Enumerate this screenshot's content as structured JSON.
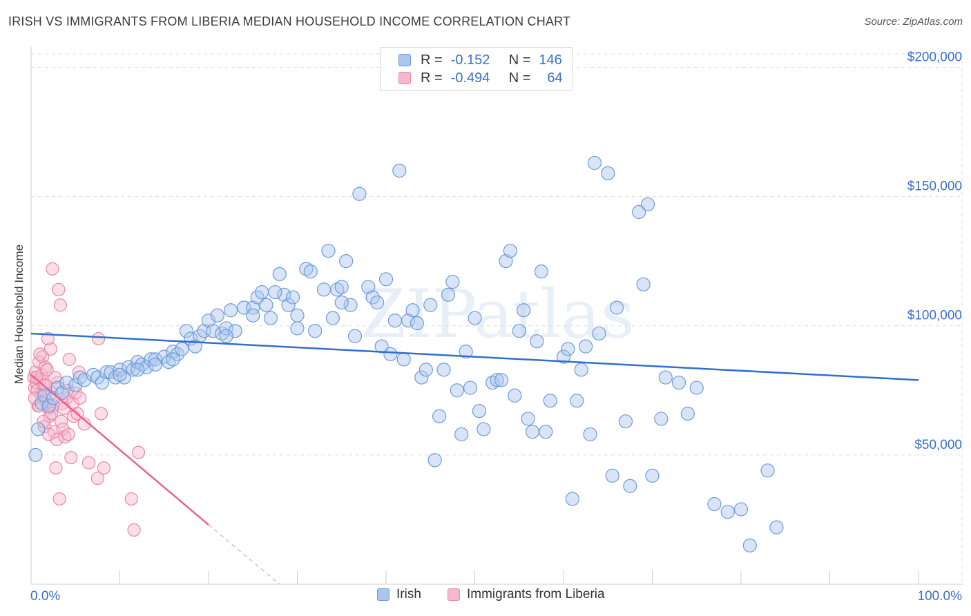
{
  "header": {
    "title": "IRISH VS IMMIGRANTS FROM LIBERIA MEDIAN HOUSEHOLD INCOME CORRELATION CHART",
    "source": "Source: ZipAtlas.com"
  },
  "legend": {
    "series": [
      {
        "r_label": "R =",
        "r_value": "-0.152",
        "n_label": "N =",
        "n_value": "146"
      },
      {
        "r_label": "R =",
        "r_value": "-0.494",
        "n_label": "N =",
        "n_value": "64"
      }
    ]
  },
  "bottom_legend": [
    "Irish",
    "Immigrants from Liberia"
  ],
  "watermark": "ZIPatlas",
  "colors": {
    "irish_fill": "#aac6ee",
    "irish_stroke": "#6d9ad8",
    "irish_line": "#2f6fcd",
    "liberia_fill": "#f5b8cb",
    "liberia_stroke": "#ea85a6",
    "liberia_line": "#e8628f",
    "axis_label": "#3a70c8",
    "grid": "#dddddd"
  },
  "chart_data": {
    "type": "scatter",
    "title": "IRISH VS IMMIGRANTS FROM LIBERIA MEDIAN HOUSEHOLD INCOME CORRELATION CHART",
    "xlabel": "",
    "ylabel": "Median Household Income",
    "xlim": [
      0,
      100
    ],
    "ylim": [
      0,
      210000
    ],
    "x_tick_labels": [
      {
        "value": 0,
        "label": "0.0%"
      },
      {
        "value": 100,
        "label": "100.0%"
      }
    ],
    "y_tick_labels": [
      {
        "value": 50000,
        "label": "$50,000"
      },
      {
        "value": 100000,
        "label": "$100,000"
      },
      {
        "value": 150000,
        "label": "$150,000"
      },
      {
        "value": 200000,
        "label": "$200,000"
      }
    ],
    "grid": true,
    "series": [
      {
        "name": "Irish",
        "r": -0.152,
        "n": 146,
        "trend": {
          "x0": 0,
          "y0": 97000,
          "x1": 100,
          "y1": 79000
        },
        "points": [
          [
            0.5,
            50000
          ],
          [
            0.8,
            60000
          ],
          [
            1.2,
            70000
          ],
          [
            1.5,
            73000
          ],
          [
            2,
            69000
          ],
          [
            2.5,
            72000
          ],
          [
            3,
            76000
          ],
          [
            3.5,
            74000
          ],
          [
            4,
            78000
          ],
          [
            5,
            77000
          ],
          [
            5.5,
            80000
          ],
          [
            6,
            79000
          ],
          [
            7,
            81000
          ],
          [
            7.5,
            80000
          ],
          [
            8,
            78000
          ],
          [
            8.5,
            82000
          ],
          [
            9,
            82000
          ],
          [
            9.5,
            80000
          ],
          [
            10,
            83000
          ],
          [
            10.5,
            80000
          ],
          [
            11,
            84000
          ],
          [
            11.5,
            83000
          ],
          [
            12,
            86000
          ],
          [
            12.5,
            85000
          ],
          [
            13,
            84000
          ],
          [
            13.5,
            87000
          ],
          [
            14,
            87000
          ],
          [
            15,
            88000
          ],
          [
            15.5,
            86000
          ],
          [
            16,
            90000
          ],
          [
            16.5,
            89000
          ],
          [
            17,
            91000
          ],
          [
            17.5,
            98000
          ],
          [
            18,
            95000
          ],
          [
            19,
            96000
          ],
          [
            19.5,
            98000
          ],
          [
            20,
            102000
          ],
          [
            20.5,
            98000
          ],
          [
            21,
            104000
          ],
          [
            21.5,
            97000
          ],
          [
            22,
            99000
          ],
          [
            22.5,
            106000
          ],
          [
            23,
            98000
          ],
          [
            24,
            107000
          ],
          [
            25,
            107000
          ],
          [
            25.5,
            111000
          ],
          [
            26,
            113000
          ],
          [
            26.5,
            108000
          ],
          [
            27,
            103000
          ],
          [
            28,
            120000
          ],
          [
            28.5,
            112000
          ],
          [
            29,
            108000
          ],
          [
            29.5,
            111000
          ],
          [
            30,
            104000
          ],
          [
            31,
            122000
          ],
          [
            31.5,
            121000
          ],
          [
            32,
            98000
          ],
          [
            33,
            114000
          ],
          [
            33.5,
            129000
          ],
          [
            34,
            103000
          ],
          [
            34.5,
            114000
          ],
          [
            35,
            115000
          ],
          [
            35.5,
            125000
          ],
          [
            36,
            108000
          ],
          [
            36.5,
            96000
          ],
          [
            37,
            151000
          ],
          [
            38,
            115000
          ],
          [
            38.5,
            111000
          ],
          [
            39,
            109000
          ],
          [
            39.5,
            92000
          ],
          [
            40,
            118000
          ],
          [
            40.5,
            89000
          ],
          [
            41,
            102000
          ],
          [
            41.5,
            160000
          ],
          [
            42,
            87000
          ],
          [
            42.5,
            102000
          ],
          [
            43,
            106000
          ],
          [
            43.5,
            101000
          ],
          [
            44,
            80000
          ],
          [
            44.5,
            83000
          ],
          [
            45,
            108000
          ],
          [
            45.5,
            48000
          ],
          [
            46,
            65000
          ],
          [
            46.5,
            83000
          ],
          [
            47,
            112000
          ],
          [
            47.5,
            117000
          ],
          [
            48,
            75000
          ],
          [
            48.5,
            58000
          ],
          [
            49,
            90000
          ],
          [
            49.5,
            76000
          ],
          [
            50,
            103000
          ],
          [
            50.5,
            67000
          ],
          [
            51,
            60000
          ],
          [
            52,
            78000
          ],
          [
            52.5,
            79000
          ],
          [
            53,
            79000
          ],
          [
            53.5,
            125000
          ],
          [
            54,
            129000
          ],
          [
            54.5,
            73000
          ],
          [
            55,
            98000
          ],
          [
            55.5,
            106000
          ],
          [
            56,
            64000
          ],
          [
            56.5,
            59000
          ],
          [
            57,
            94000
          ],
          [
            57.5,
            121000
          ],
          [
            58,
            59000
          ],
          [
            58.5,
            71000
          ],
          [
            60,
            88000
          ],
          [
            60.5,
            91000
          ],
          [
            61,
            33000
          ],
          [
            61.5,
            71000
          ],
          [
            62,
            83000
          ],
          [
            62.5,
            92000
          ],
          [
            63,
            58000
          ],
          [
            63.5,
            163000
          ],
          [
            64,
            97000
          ],
          [
            65,
            159000
          ],
          [
            65.5,
            42000
          ],
          [
            66,
            107000
          ],
          [
            67,
            63000
          ],
          [
            67.5,
            38000
          ],
          [
            68.5,
            144000
          ],
          [
            69,
            116000
          ],
          [
            69.5,
            147000
          ],
          [
            70,
            42000
          ],
          [
            71,
            64000
          ],
          [
            71.5,
            80000
          ],
          [
            73,
            78000
          ],
          [
            74,
            66000
          ],
          [
            75,
            76000
          ],
          [
            77,
            31000
          ],
          [
            78.5,
            28000
          ],
          [
            80,
            29000
          ],
          [
            81,
            15000
          ],
          [
            83,
            44000
          ],
          [
            84,
            22000
          ],
          [
            25,
            104000
          ],
          [
            30,
            99000
          ],
          [
            35,
            109000
          ],
          [
            27.5,
            113000
          ],
          [
            22,
            96000
          ],
          [
            18.5,
            92000
          ],
          [
            16,
            87000
          ],
          [
            14,
            85000
          ],
          [
            12,
            83000
          ],
          [
            10,
            81000
          ]
        ]
      },
      {
        "name": "Immigrants from Liberia",
        "r": -0.494,
        "n": 64,
        "trend": {
          "x0": 0,
          "y0": 81000,
          "x1": 20,
          "y1": 23000,
          "dash_to_x": 28,
          "dash_to_y": 0
        },
        "points": [
          [
            0.3,
            80000
          ],
          [
            0.4,
            76000
          ],
          [
            0.5,
            82000
          ],
          [
            0.6,
            78000
          ],
          [
            0.7,
            75000
          ],
          [
            0.8,
            69000
          ],
          [
            0.9,
            86000
          ],
          [
            1,
            79000
          ],
          [
            1.1,
            73000
          ],
          [
            1.2,
            81000
          ],
          [
            1.3,
            88000
          ],
          [
            1.4,
            77000
          ],
          [
            1.5,
            61000
          ],
          [
            1.6,
            84000
          ],
          [
            1.7,
            71000
          ],
          [
            1.8,
            83000
          ],
          [
            2,
            68000
          ],
          [
            2.1,
            65000
          ],
          [
            2.2,
            91000
          ],
          [
            2.3,
            74000
          ],
          [
            2.4,
            122000
          ],
          [
            2.5,
            69000
          ],
          [
            2.6,
            59000
          ],
          [
            2.8,
            45000
          ],
          [
            2.9,
            56000
          ],
          [
            3,
            78000
          ],
          [
            3.1,
            114000
          ],
          [
            3.2,
            33000
          ],
          [
            3.3,
            108000
          ],
          [
            3.4,
            63000
          ],
          [
            3.5,
            70000
          ],
          [
            3.6,
            60000
          ],
          [
            3.8,
            57000
          ],
          [
            4,
            72000
          ],
          [
            4.2,
            58000
          ],
          [
            4.3,
            87000
          ],
          [
            4.5,
            49000
          ],
          [
            4.7,
            70000
          ],
          [
            4.8,
            65000
          ],
          [
            5,
            74000
          ],
          [
            5.2,
            66000
          ],
          [
            5.4,
            82000
          ],
          [
            5.5,
            72000
          ],
          [
            6,
            62000
          ],
          [
            6.5,
            47000
          ],
          [
            7.5,
            41000
          ],
          [
            7.6,
            95000
          ],
          [
            7.9,
            66000
          ],
          [
            8.2,
            45000
          ],
          [
            11.3,
            33000
          ],
          [
            11.6,
            21000
          ],
          [
            12.1,
            51000
          ],
          [
            1.9,
            95000
          ],
          [
            1.0,
            89000
          ],
          [
            0.6,
            80000
          ],
          [
            2.7,
            80000
          ],
          [
            3.7,
            68000
          ],
          [
            1.4,
            63000
          ],
          [
            0.9,
            69000
          ],
          [
            2.0,
            58000
          ],
          [
            1.6,
            77000
          ],
          [
            0.4,
            72000
          ],
          [
            4.1,
            75000
          ],
          [
            2.3,
            66000
          ]
        ]
      }
    ]
  }
}
